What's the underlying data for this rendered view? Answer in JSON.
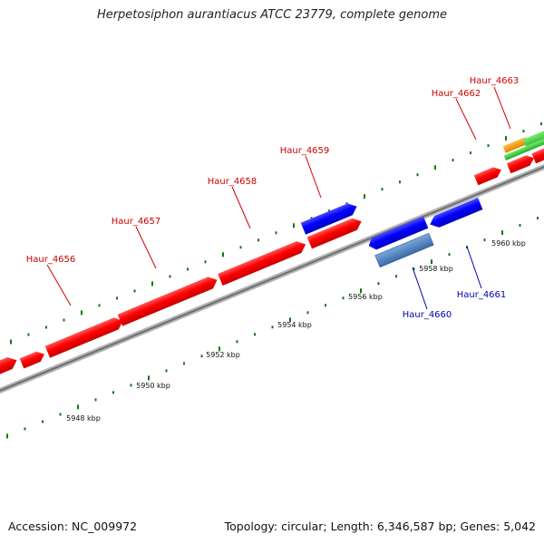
{
  "title": "Herpetosiphon aurantiacus ATCC 23779, complete genome",
  "footer": {
    "accession": "Accession: NC_009972",
    "summary": "Topology: circular; Length: 6,346,587 bp; Genes: 5,042"
  },
  "colors": {
    "forward_gene": "#ff0000",
    "reverse_gene": "#0000ff",
    "reverse_gene_light": "#4a7fc0",
    "orange_gene": "#ff9900",
    "green_gene": "#33cc33",
    "tick": "#117711",
    "backbone": "#8a8a8a",
    "forward_label": "#cc0000",
    "reverse_label": "#0000aa"
  },
  "gene_labels_forward": [
    "Haur_4656",
    "Haur_4657",
    "Haur_4658",
    "Haur_4659",
    "Haur_4662",
    "Haur_4663"
  ],
  "gene_labels_reverse": [
    "Haur_4660",
    "Haur_4661"
  ],
  "scale_labels": [
    "5948 kbp",
    "5950 kbp",
    "5952 kbp",
    "5954 kbp",
    "5956 kbp",
    "5958 kbp",
    "5960 kbp"
  ]
}
